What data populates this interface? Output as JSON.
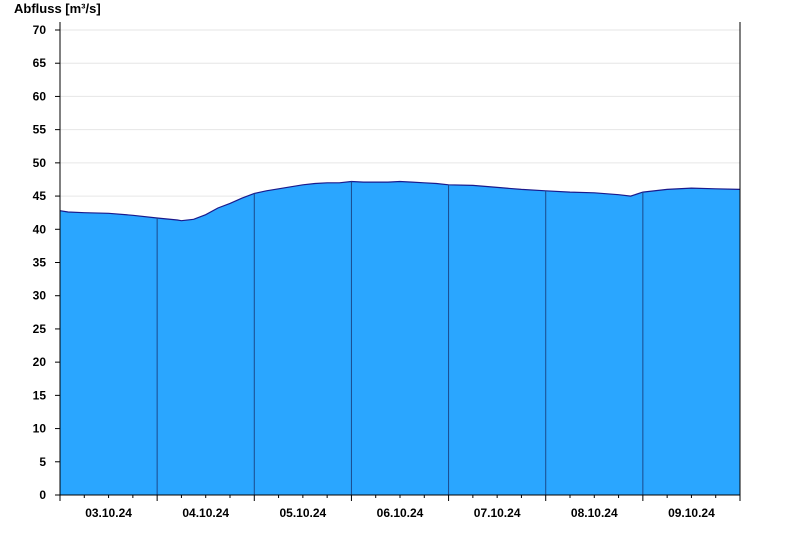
{
  "chart_data": {
    "type": "area",
    "title": "",
    "ylabel": "Abfluss [m³/s]",
    "xlabel": "",
    "ylim": [
      0,
      70
    ],
    "yticks": [
      0,
      5,
      10,
      15,
      20,
      25,
      30,
      35,
      40,
      45,
      50,
      55,
      60,
      65,
      70
    ],
    "grid": true,
    "fill_color": "#2aa6ff",
    "line_color": "#1a1a8c",
    "day_boundaries": [
      "03.10.24 00:00",
      "04.10.24 00:00",
      "05.10.24 00:00",
      "06.10.24 00:00",
      "07.10.24 00:00",
      "08.10.24 00:00",
      "09.10.24 00:00",
      "10.10.24 00:00"
    ],
    "x_tick_labels": [
      "03.10.24",
      "04.10.24",
      "05.10.24",
      "06.10.24",
      "07.10.24",
      "08.10.24",
      "09.10.24"
    ],
    "series": [
      {
        "x": [
          "03.10.24 00:00",
          "03.10.24 02:00",
          "03.10.24 06:00",
          "03.10.24 12:00",
          "03.10.24 18:00",
          "04.10.24 00:00",
          "04.10.24 05:00",
          "04.10.24 06:00",
          "04.10.24 09:00",
          "04.10.24 12:00",
          "04.10.24 15:00",
          "04.10.24 18:00",
          "04.10.24 21:00",
          "05.10.24 00:00",
          "05.10.24 03:00",
          "05.10.24 06:00",
          "05.10.24 09:00",
          "05.10.24 12:00",
          "05.10.24 15:00",
          "05.10.24 18:00",
          "05.10.24 21:00",
          "06.10.24 00:00",
          "06.10.24 03:00",
          "06.10.24 06:00",
          "06.10.24 09:00",
          "06.10.24 12:00",
          "06.10.24 15:00",
          "06.10.24 18:00",
          "06.10.24 21:00",
          "07.10.24 00:00",
          "07.10.24 06:00",
          "07.10.24 12:00",
          "07.10.24 18:00",
          "08.10.24 00:00",
          "08.10.24 06:00",
          "08.10.24 12:00",
          "08.10.24 18:00",
          "08.10.24 21:00",
          "09.10.24 00:00",
          "09.10.24 06:00",
          "09.10.24 12:00",
          "09.10.24 18:00",
          "10.10.24 00:00"
        ],
        "values": [
          42.8,
          42.6,
          42.5,
          42.4,
          42.1,
          41.7,
          41.4,
          41.3,
          41.5,
          42.2,
          43.2,
          43.9,
          44.7,
          45.4,
          45.8,
          46.1,
          46.4,
          46.7,
          46.9,
          47.0,
          47.0,
          47.2,
          47.1,
          47.1,
          47.1,
          47.2,
          47.1,
          47.0,
          46.9,
          46.7,
          46.6,
          46.3,
          46.0,
          45.8,
          45.6,
          45.5,
          45.2,
          45.0,
          45.6,
          46.0,
          46.2,
          46.1,
          46.0
        ]
      }
    ]
  }
}
